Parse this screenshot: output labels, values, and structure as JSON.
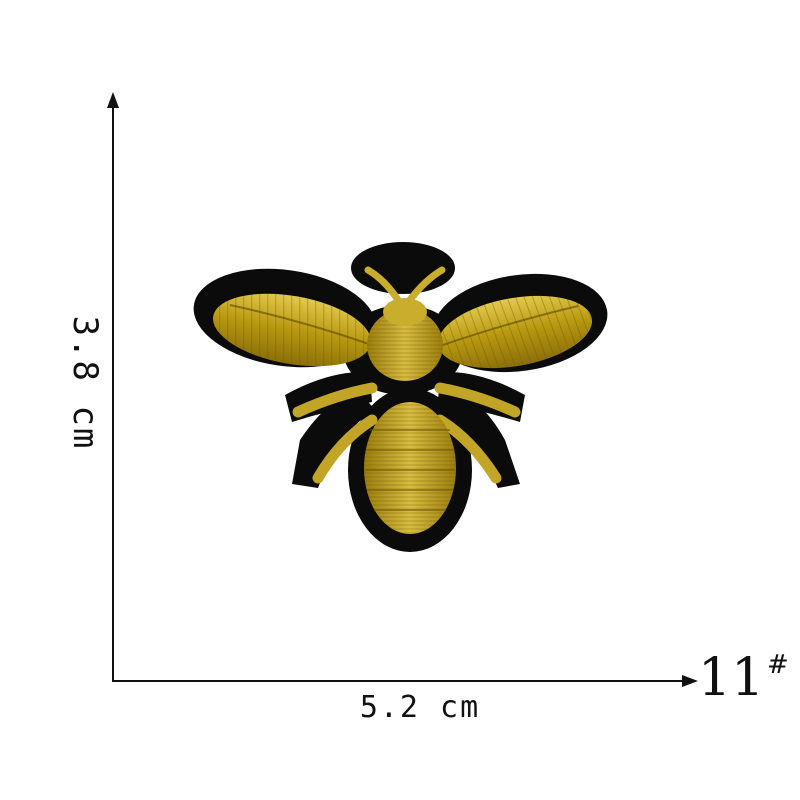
{
  "dimensions": {
    "height_label": "3.8 cm",
    "width_label": "5.2 cm"
  },
  "model": {
    "number": "11",
    "suffix": "#"
  },
  "colors": {
    "patch_border": "#0b0b0b",
    "gold": "#b8980f",
    "gold_light": "#e0c64a",
    "gold_dark": "#7a6206"
  },
  "icon": "embroidered-bee-patch"
}
